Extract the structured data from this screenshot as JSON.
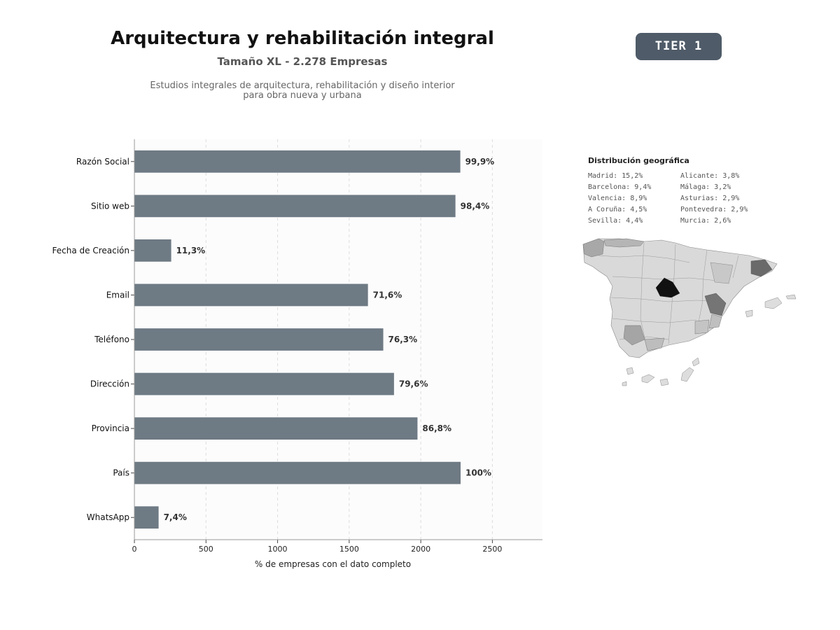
{
  "header": {
    "title": "Arquitectura y rehabilitación integral",
    "subtitle": "Tamaño XL - 2.278 Empresas",
    "description_lines": [
      "Estudios integrales de arquitectura, rehabilitación y diseño interior",
      "para obra nueva y urbana"
    ],
    "tier_label": "TIER 1"
  },
  "colors": {
    "bar": "#6e7a84",
    "tier_badge": "#4f5b68",
    "plot_background": "#fcfcfc",
    "map_highlight": "#111111"
  },
  "chart_data": {
    "type": "bar",
    "orientation": "horizontal",
    "categories": [
      "Razón Social",
      "Sitio web",
      "Fecha de Creación",
      "Email",
      "Teléfono",
      "Dirección",
      "Provincia",
      "País",
      "WhatsApp"
    ],
    "values": [
      2276,
      2242,
      257,
      1631,
      1738,
      1813,
      1977,
      2278,
      169
    ],
    "data_labels": [
      "99,9%",
      "98,4%",
      "11,3%",
      "71,6%",
      "76,3%",
      "79,6%",
      "86,8%",
      "100%",
      "7,4%"
    ],
    "xlabel": "% de empresas con el dato completo",
    "ylabel": "",
    "xlim": [
      0,
      2850
    ],
    "xticks": [
      0,
      500,
      1000,
      1500,
      2000,
      2500
    ],
    "grid": "vertical dashed"
  },
  "geo": {
    "title": "Distribución geográfica",
    "items": [
      "Madrid: 15,2%",
      "Barcelona: 9,4%",
      "Valencia: 8,9%",
      "A Coruña: 4,5%",
      "Sevilla: 4,4%",
      "Alicante: 3,8%",
      "Málaga: 3,2%",
      "Asturias: 2,9%",
      "Pontevedra: 2,9%",
      "Murcia: 2,6%"
    ]
  }
}
